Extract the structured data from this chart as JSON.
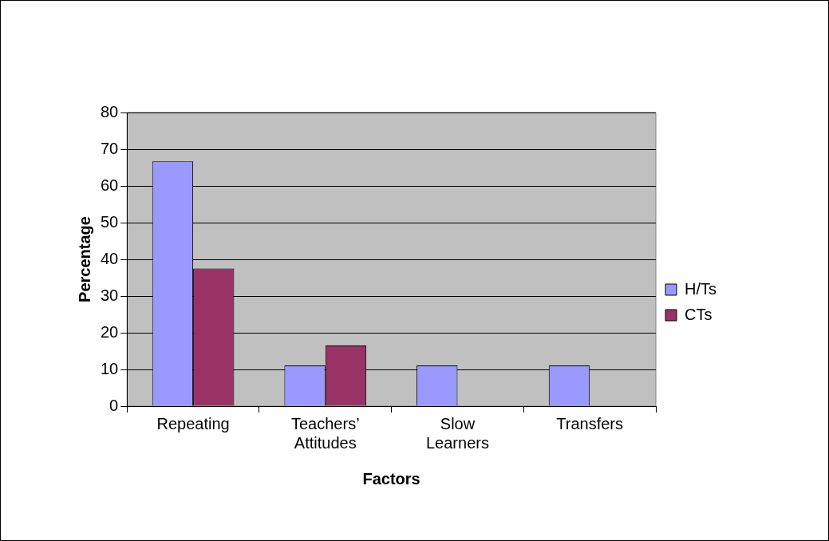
{
  "chart_data": {
    "type": "bar",
    "xlabel": "Factors",
    "ylabel": "Percentage",
    "categories": [
      "Repeating",
      "Teachers’ Attitudes",
      "Slow Learners",
      "Transfers"
    ],
    "series": [
      {
        "name": "H/Ts",
        "color": "#9999ff",
        "values": [
          66.7,
          11.1,
          11.1,
          11.1
        ]
      },
      {
        "name": "CTs",
        "color": "#993366",
        "values": [
          37.5,
          16.5,
          0,
          0
        ]
      }
    ],
    "ylim": [
      0,
      80
    ],
    "yticks": [
      0,
      10,
      20,
      30,
      40,
      50,
      60,
      70,
      80
    ],
    "grid": "y",
    "legend": "right"
  }
}
